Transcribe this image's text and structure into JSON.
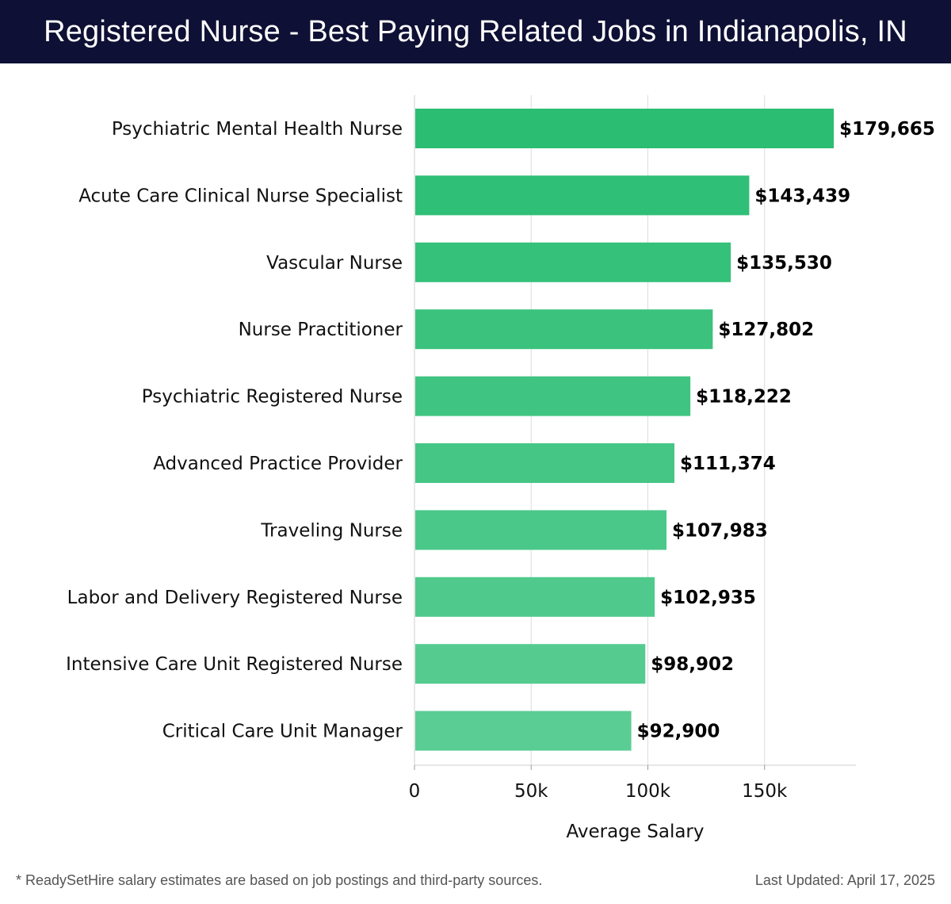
{
  "header": {
    "title": "Registered Nurse - Best Paying Related Jobs in Indianapolis, IN"
  },
  "footer": {
    "note": "* ReadySetHire salary estimates are based on job postings and third-party sources.",
    "updated": "Last Updated: April 17, 2025"
  },
  "colors": {
    "header_bg": "#0f1035",
    "bar_top": "#2bbd72",
    "bar_bottom": "#5acd94",
    "grid": "#dddddd"
  },
  "chart_data": {
    "type": "bar",
    "orientation": "horizontal",
    "title": "Registered Nurse - Best Paying Related Jobs in Indianapolis, IN",
    "xlabel": "Average Salary",
    "ylabel": "",
    "xlim": [
      0,
      189000
    ],
    "x_ticks": [
      0,
      50000,
      100000,
      150000
    ],
    "x_tick_labels": [
      "0",
      "50k",
      "100k",
      "150k"
    ],
    "grid": "vertical",
    "categories": [
      "Psychiatric Mental Health Nurse",
      "Acute Care Clinical Nurse Specialist",
      "Vascular Nurse",
      "Nurse Practitioner",
      "Psychiatric Registered Nurse",
      "Advanced Practice Provider",
      "Traveling Nurse",
      "Labor and Delivery Registered Nurse",
      "Intensive Care Unit Registered Nurse",
      "Critical Care Unit Manager"
    ],
    "values": [
      179665,
      143439,
      135530,
      127802,
      118222,
      111374,
      107983,
      102935,
      98902,
      92900
    ],
    "value_labels": [
      "$179,665",
      "$143,439",
      "$135,530",
      "$127,802",
      "$118,222",
      "$111,374",
      "$107,983",
      "$102,935",
      "$98,902",
      "$92,900"
    ]
  }
}
